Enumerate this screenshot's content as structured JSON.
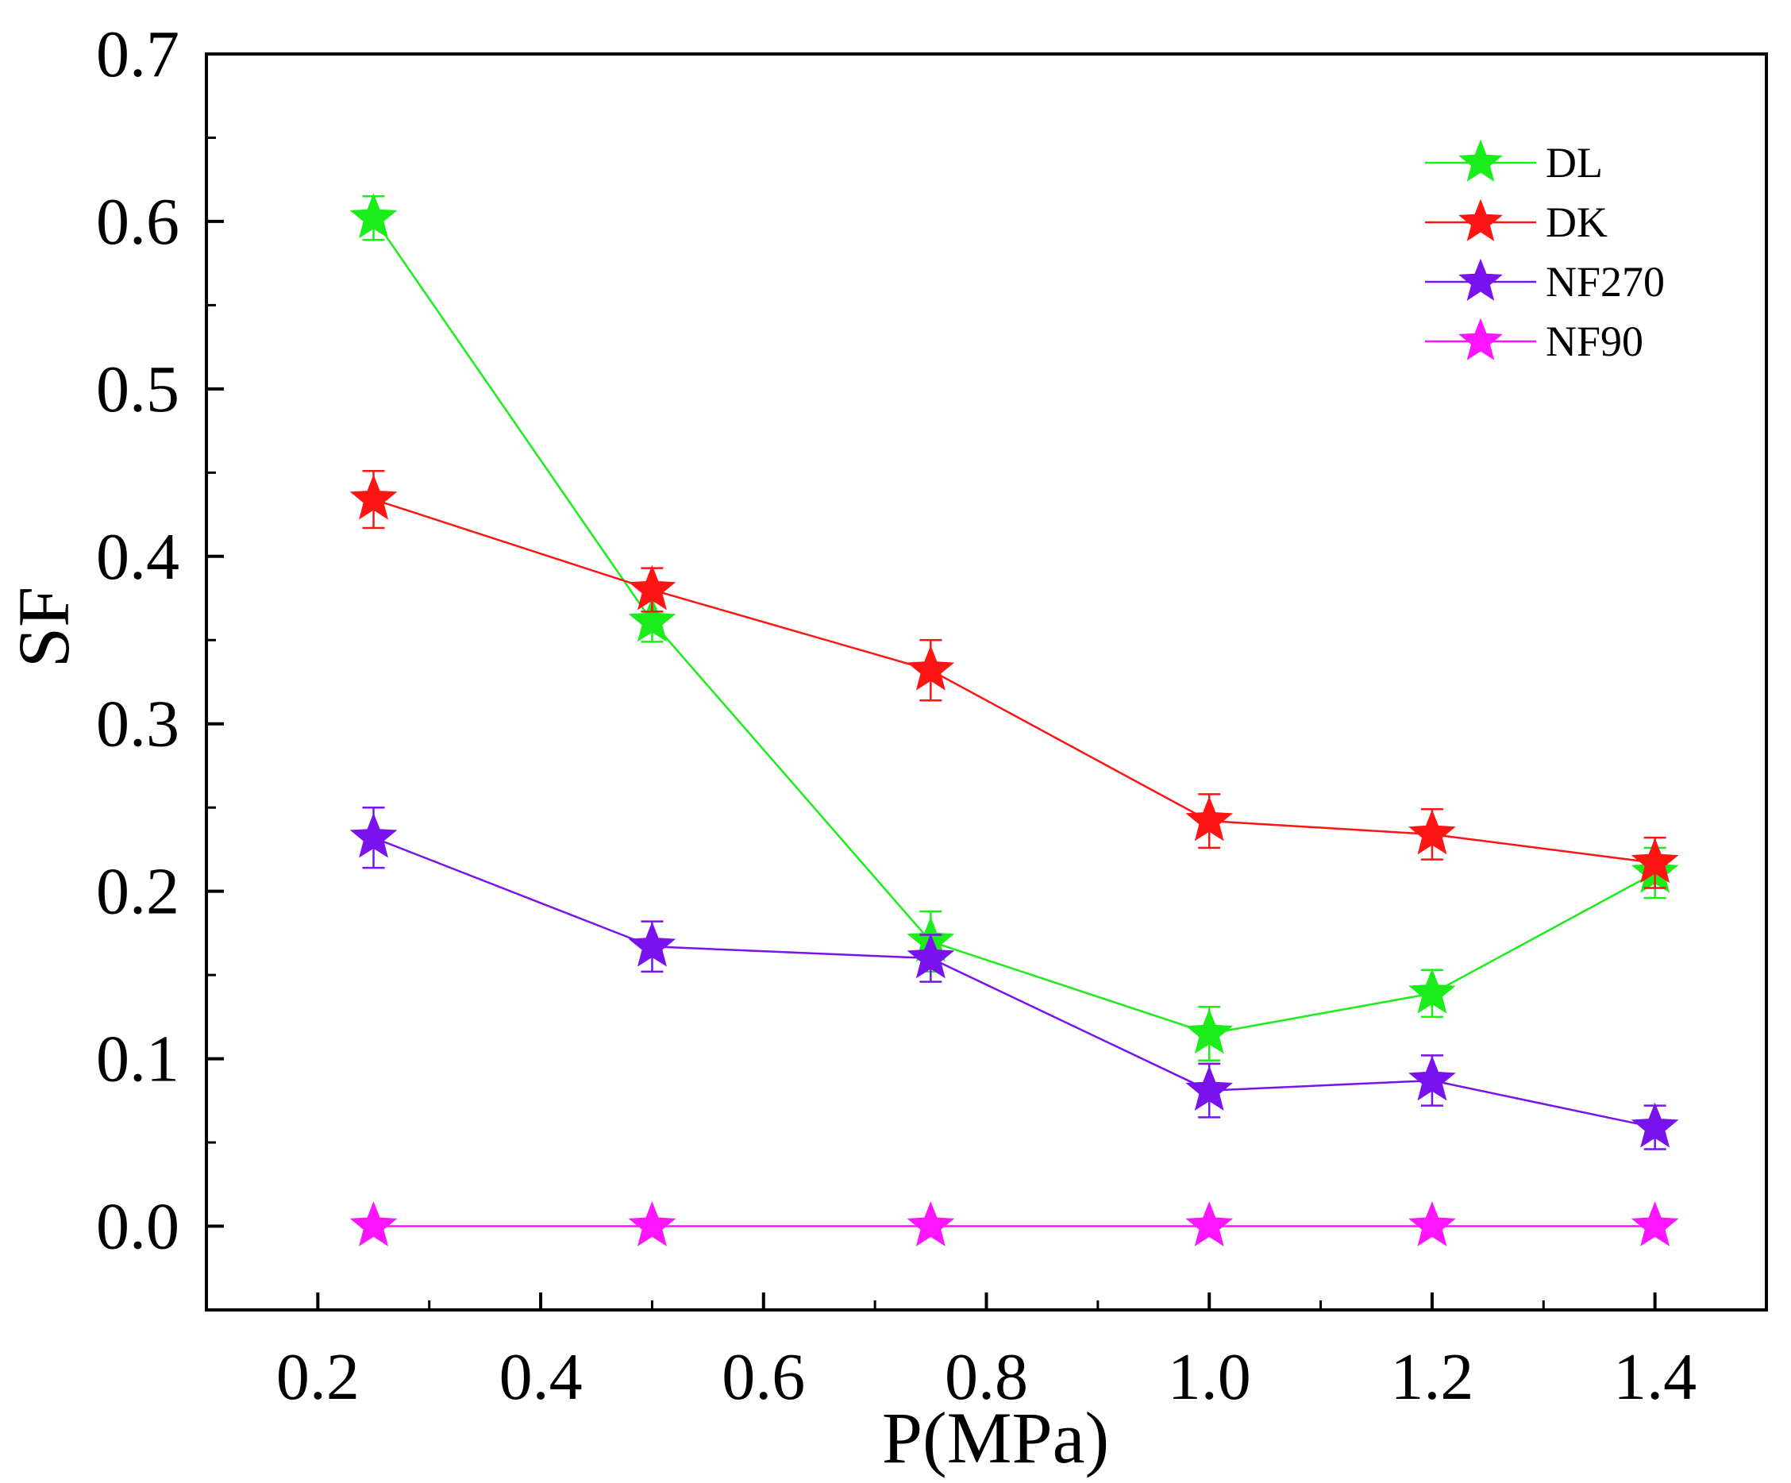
{
  "chart_data": {
    "type": "line",
    "title": "",
    "xlabel": "P(MPa)",
    "ylabel": "SF",
    "xlim": [
      0.1,
      1.5
    ],
    "ylim": [
      -0.05,
      0.7
    ],
    "x_ticks": [
      0.2,
      0.4,
      0.6,
      0.8,
      1.0,
      1.2,
      1.4
    ],
    "x_tick_labels": [
      "0.2",
      "0.4",
      "0.6",
      "0.8",
      "1.0",
      "1.2",
      "1.4"
    ],
    "y_ticks": [
      0.0,
      0.1,
      0.2,
      0.3,
      0.4,
      0.5,
      0.6,
      0.7
    ],
    "y_tick_labels": [
      "0.0",
      "0.1",
      "0.2",
      "0.3",
      "0.4",
      "0.5",
      "0.6",
      "0.7"
    ],
    "x": [
      0.25,
      0.5,
      0.75,
      1.0,
      1.2,
      1.4
    ],
    "legend_position": "top-right",
    "grid": false,
    "series": [
      {
        "name": "DL",
        "color": "#1aed1a",
        "marker": "star",
        "values": [
          0.602,
          0.361,
          0.17,
          0.115,
          0.139,
          0.211
        ],
        "errors": [
          0.013,
          0.012,
          0.018,
          0.016,
          0.014,
          0.015
        ]
      },
      {
        "name": "DK",
        "color": "#ff1414",
        "marker": "star",
        "values": [
          0.434,
          0.38,
          0.332,
          0.242,
          0.234,
          0.217
        ],
        "errors": [
          0.017,
          0.013,
          0.018,
          0.016,
          0.015,
          0.015
        ]
      },
      {
        "name": "NF270",
        "color": "#7a12ee",
        "marker": "star",
        "values": [
          0.232,
          0.167,
          0.16,
          0.081,
          0.087,
          0.059
        ],
        "errors": [
          0.018,
          0.015,
          0.014,
          0.016,
          0.015,
          0.013
        ]
      },
      {
        "name": "NF90",
        "color": "#ff14ff",
        "marker": "star",
        "values": [
          0.0,
          0.0,
          0.0,
          0.0,
          0.0,
          0.0
        ],
        "errors": [
          0,
          0,
          0,
          0,
          0,
          0
        ]
      }
    ]
  }
}
